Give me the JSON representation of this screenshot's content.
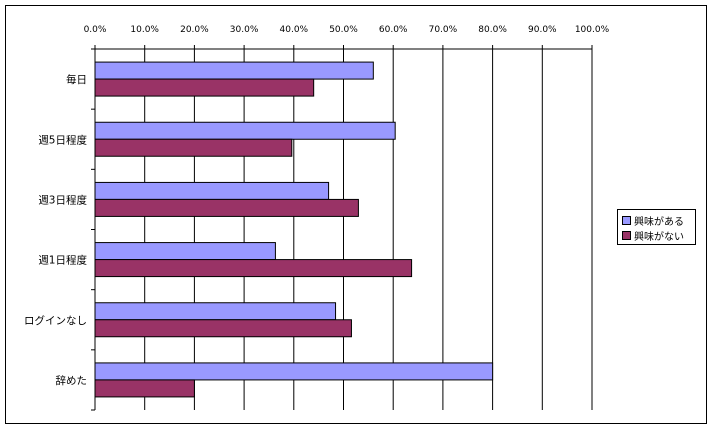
{
  "chart_data": {
    "type": "bar",
    "orientation": "horizontal",
    "categories": [
      "毎日",
      "週5日程度",
      "週3日程度",
      "週1日程度",
      "ログインなし",
      "辞めた"
    ],
    "series": [
      {
        "name": "興味がある",
        "values": [
          56.0,
          60.4,
          47.0,
          36.3,
          48.4,
          80.0
        ],
        "color": "#9999ff"
      },
      {
        "name": "興味がない",
        "values": [
          44.0,
          39.6,
          53.0,
          63.7,
          51.6,
          20.0
        ],
        "color": "#993366"
      }
    ],
    "xticks": [
      "0.0%",
      "10.0%",
      "20.0%",
      "30.0%",
      "40.0%",
      "50.0%",
      "60.0%",
      "70.0%",
      "80.0%",
      "90.0%",
      "100.0%"
    ],
    "xlim": [
      0,
      100
    ],
    "x_axis_position": "top",
    "grid": true,
    "legend": "right"
  }
}
